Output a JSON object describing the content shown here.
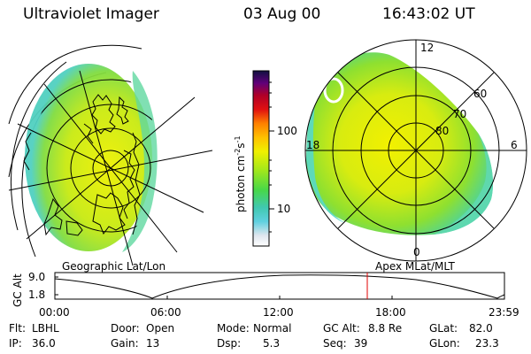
{
  "header": {
    "title": "Ultraviolet Imager",
    "date": "03 Aug 00",
    "time": "16:43:02 UT"
  },
  "left_panel": {
    "caption": "Geographic Lat/Lon"
  },
  "right_panel": {
    "caption": "Apex MLat/MLT",
    "mlt_labels": [
      "12",
      "18",
      "6",
      "0"
    ],
    "lat_labels": [
      "60",
      "70",
      "80"
    ]
  },
  "colorbar": {
    "unit_label": "photon cm",
    "unit_sup1": "-2",
    "unit_mid": "s",
    "unit_sup2": "-1",
    "tick_labels": [
      "100",
      "10"
    ],
    "scale": "log"
  },
  "altitude_plot": {
    "ylabel": "GC Alt",
    "y_ticks": [
      "9.0",
      "1.8"
    ],
    "x_ticks": [
      "00:00",
      "06:00",
      "12:00",
      "18:00",
      "23:59"
    ],
    "current_time_marker": "16:43",
    "marker_color": "#e00000"
  },
  "info": {
    "filter_label": "Flt:",
    "filter_value": "LBHL",
    "door_label": "Door:",
    "door_value": "Open",
    "mode_label": "Mode:",
    "mode_value": "Normal",
    "gcalt_label": "GC Alt:",
    "gcalt_value": "8.8 Re",
    "glat_label": "GLat:",
    "glat_value": "82.0",
    "ip_label": "IP:",
    "ip_value": "36.0",
    "gain_label": "Gain:",
    "gain_value": "13",
    "dsp_label": "Dsp:",
    "dsp_value": "5.3",
    "seq_label": "Seq:",
    "seq_value": "39",
    "glon_label": "GLon:",
    "glon_value": "23.3"
  }
}
